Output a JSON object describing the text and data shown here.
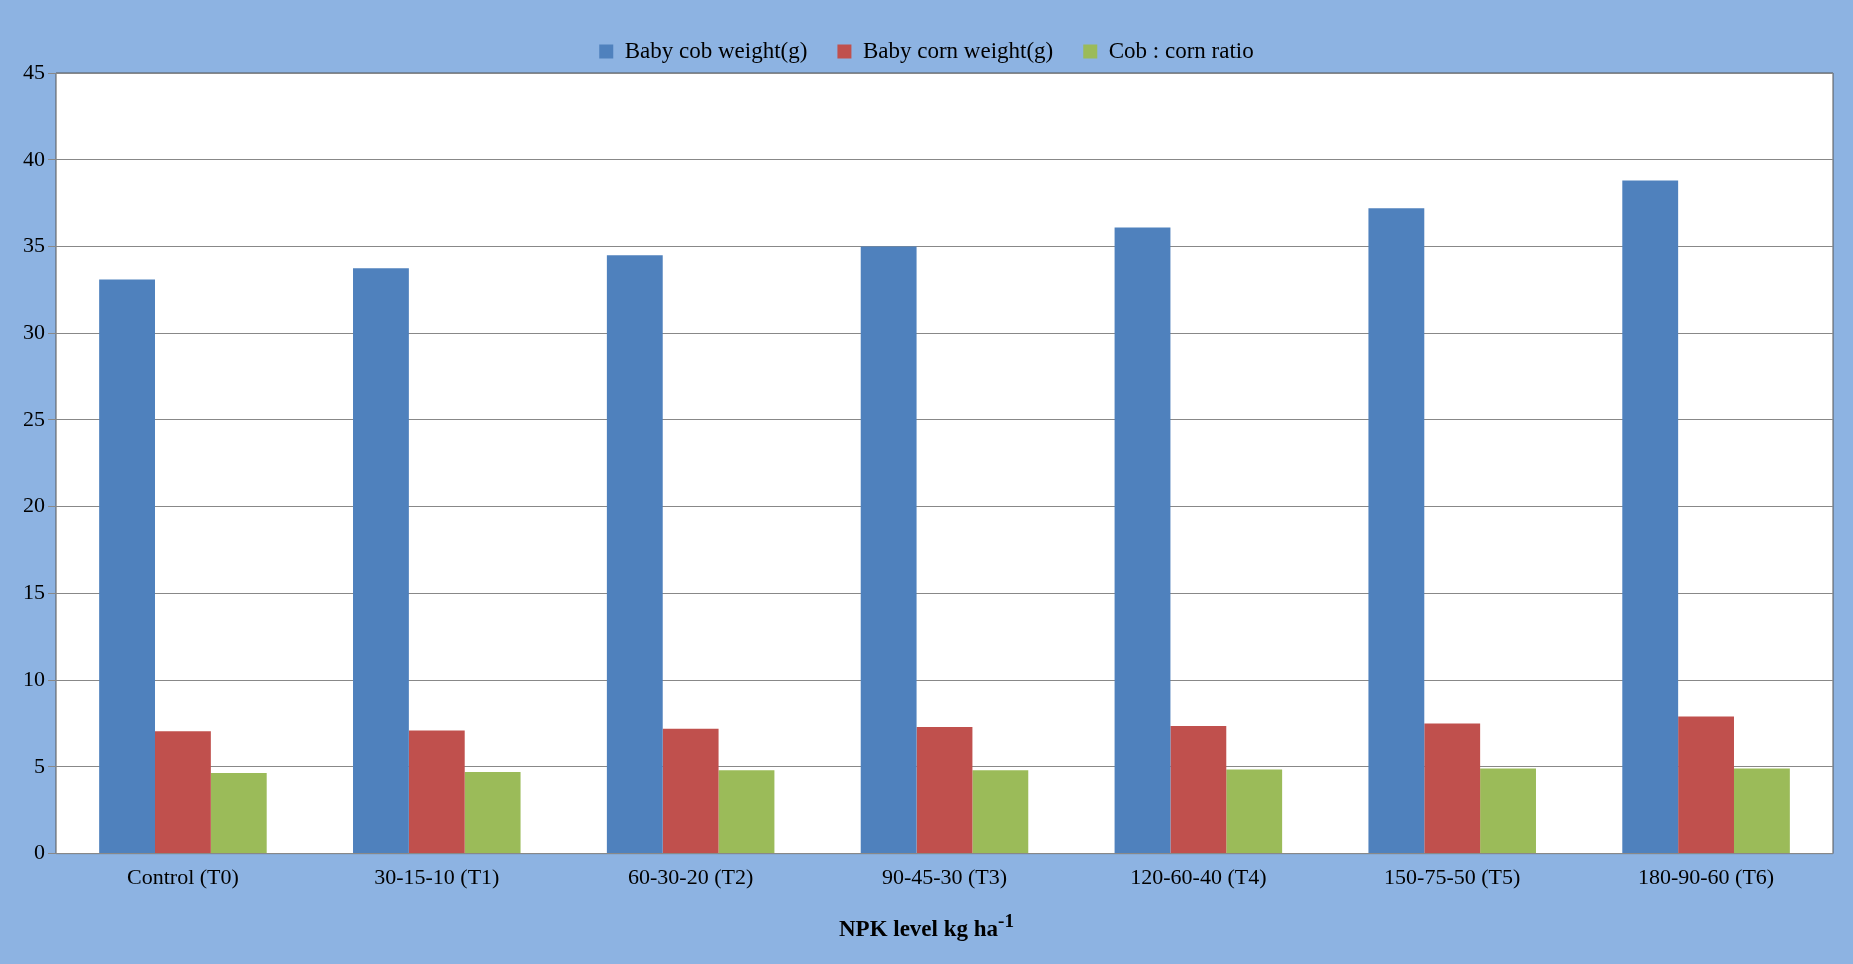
{
  "chart_data": {
    "type": "bar",
    "xlabel": "NPK level kg ha$^{-1}$",
    "categories": [
      "Control (T0)",
      "30-15-10 (T1)",
      "60-30-20 (T2)",
      "90-45-30 (T3)",
      "120-60-40 (T4)",
      "150-75-50 (T5)",
      "180-90-60 (T6)"
    ],
    "series": [
      {
        "name": "Baby cob weight(g)",
        "color": "#4f81bd",
        "values": [
          33.1,
          33.75,
          34.5,
          35.0,
          36.1,
          37.2,
          38.8
        ]
      },
      {
        "name": "Baby corn weight(g)",
        "color": "#c0504d",
        "values": [
          7.05,
          7.1,
          7.2,
          7.3,
          7.35,
          7.5,
          7.9
        ]
      },
      {
        "name": "Cob : corn ratio",
        "color": "#9bbb59",
        "values": [
          4.65,
          4.7,
          4.8,
          4.8,
          4.85,
          4.9,
          4.9
        ]
      }
    ],
    "ylim": [
      0,
      45
    ],
    "yticks": [
      0,
      5,
      10,
      15,
      20,
      25,
      30,
      35,
      40,
      45
    ],
    "grid": "y",
    "legend": "top"
  }
}
